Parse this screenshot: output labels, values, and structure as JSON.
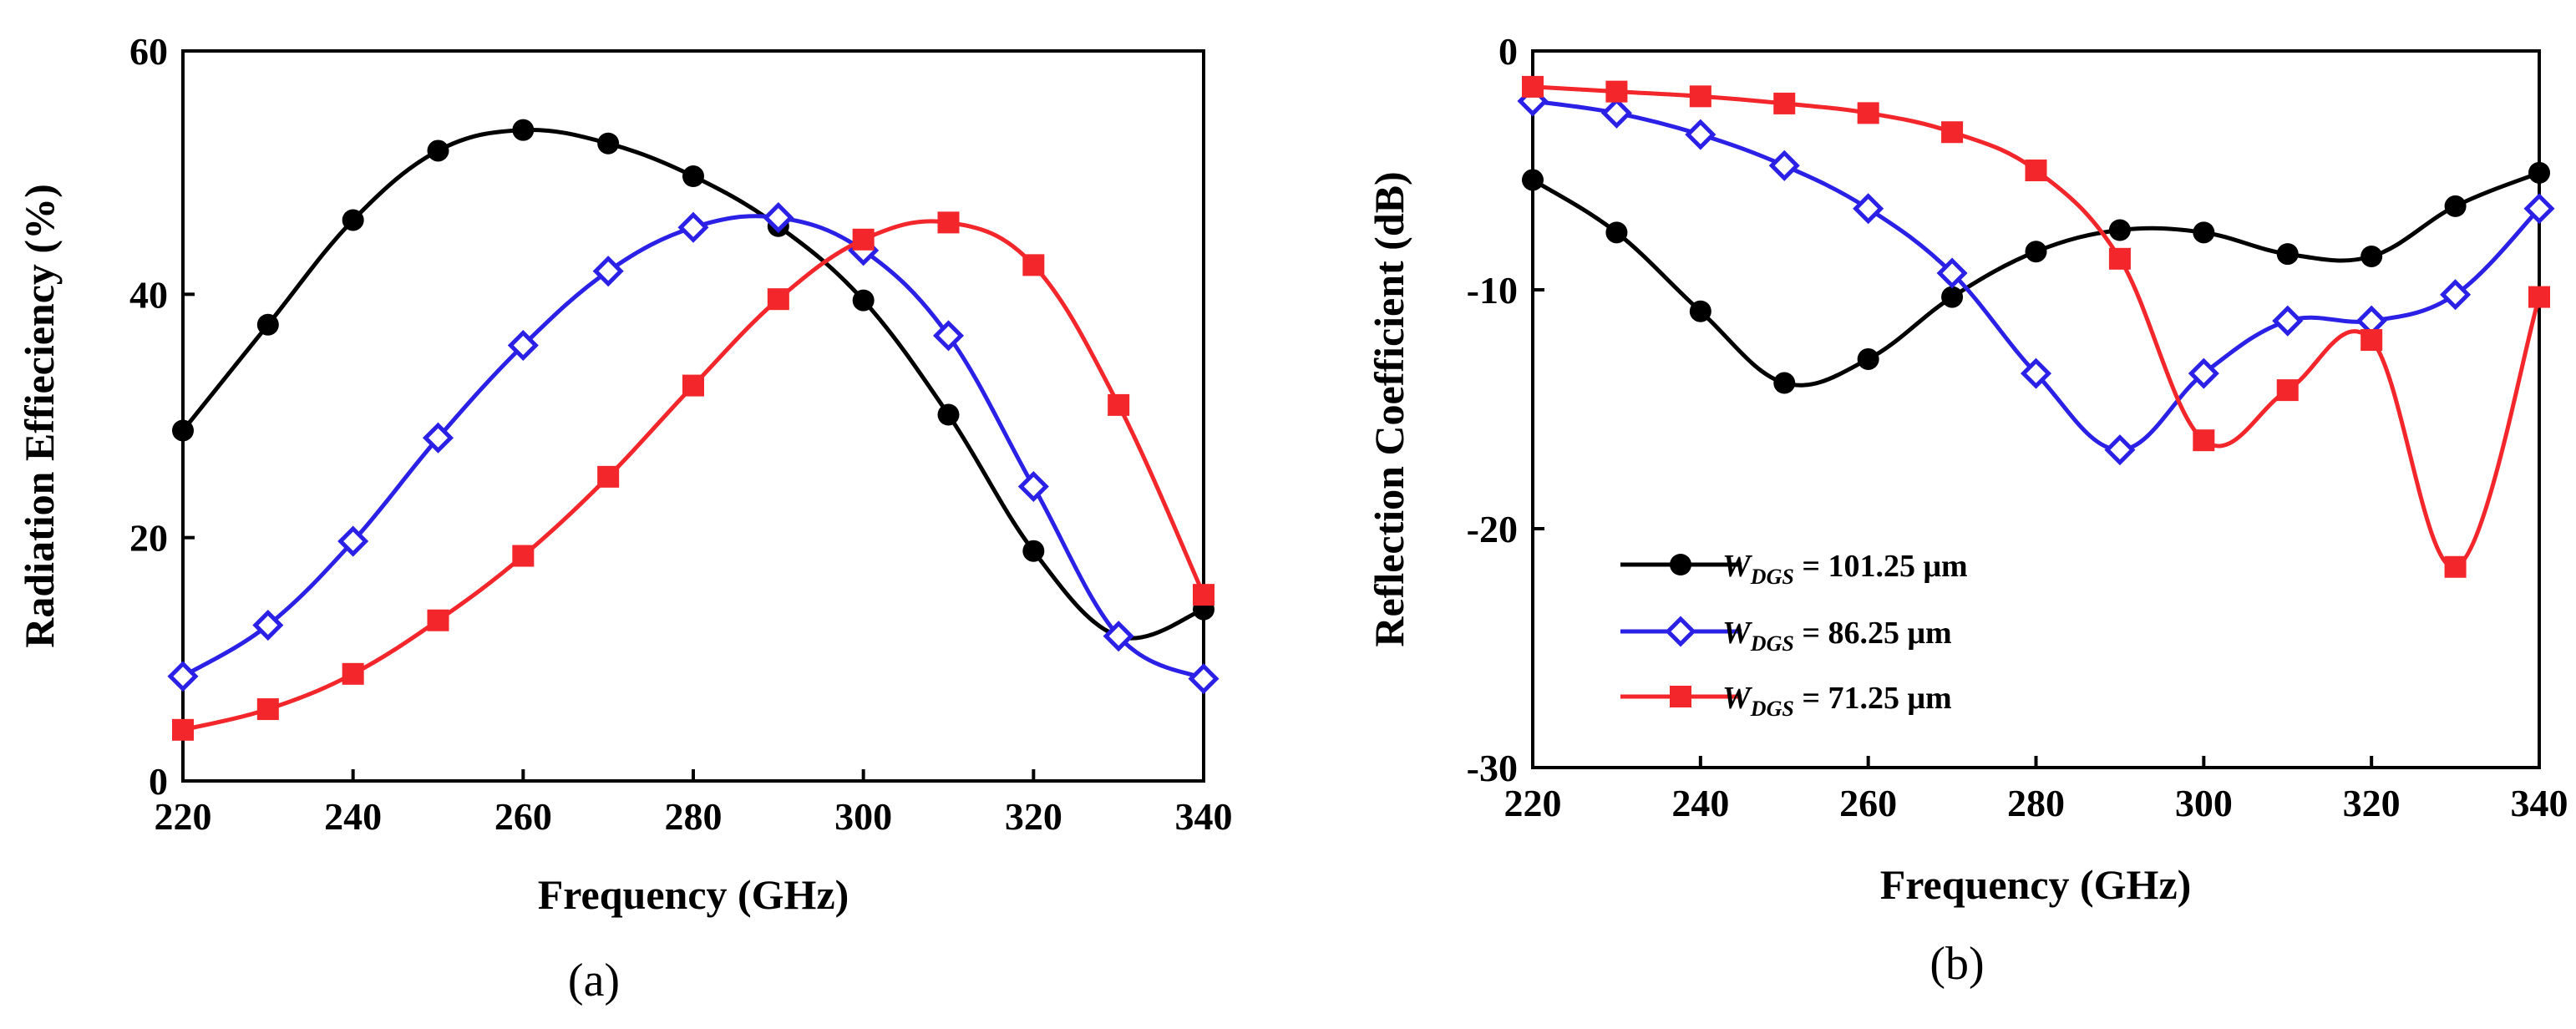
{
  "chart_data": [
    {
      "type": "line",
      "panel_label": "(a)",
      "xlabel": "Frequency (GHz)",
      "ylabel": "Radiation Effieciency (%)",
      "xlim": [
        220,
        340
      ],
      "ylim": [
        0,
        60
      ],
      "x_ticks": [
        "220",
        "240",
        "260",
        "280",
        "300",
        "320",
        "340"
      ],
      "y_ticks": [
        "0",
        "20",
        "40",
        "60"
      ],
      "grid": false,
      "x": [
        220,
        230,
        240,
        250,
        260,
        270,
        280,
        290,
        300,
        310,
        320,
        330,
        340
      ],
      "series": [
        {
          "key": "w101",
          "color": "#000000",
          "marker": "circle",
          "values": [
            28.8,
            37.5,
            46.1,
            51.8,
            53.5,
            52.4,
            49.7,
            45.6,
            39.5,
            30.1,
            18.9,
            11.9,
            14.1
          ]
        },
        {
          "key": "w86",
          "color": "#2b20e6",
          "marker": "diamond-open",
          "values": [
            8.6,
            12.8,
            19.7,
            28.2,
            35.8,
            41.9,
            45.5,
            46.3,
            43.6,
            36.6,
            24.2,
            11.9,
            8.4
          ]
        },
        {
          "key": "w71",
          "color": "#f2262b",
          "marker": "square",
          "values": [
            4.2,
            5.9,
            8.8,
            13.2,
            18.5,
            25.0,
            32.5,
            39.6,
            44.5,
            45.9,
            42.4,
            30.9,
            15.3
          ]
        }
      ]
    },
    {
      "type": "line",
      "panel_label": "(b)",
      "xlabel": "Frequency (GHz)",
      "ylabel": "Reflection Coefficient (dB)",
      "xlim": [
        220,
        340
      ],
      "ylim": [
        -30,
        0
      ],
      "x_ticks": [
        "220",
        "240",
        "260",
        "280",
        "300",
        "320",
        "340"
      ],
      "y_ticks": [
        "0",
        "-10",
        "-20",
        "-30"
      ],
      "grid": false,
      "legend_position": "lower-left",
      "x": [
        220,
        230,
        240,
        250,
        260,
        270,
        280,
        290,
        300,
        310,
        320,
        330,
        340
      ],
      "series": [
        {
          "key": "w101",
          "color": "#000000",
          "marker": "circle",
          "legend_symbol": "W",
          "legend_sub": "DGS",
          "legend_value": " = 101.25 μm",
          "values": [
            -5.4,
            -7.6,
            -10.9,
            -13.9,
            -12.9,
            -10.3,
            -8.4,
            -7.5,
            -7.6,
            -8.5,
            -8.6,
            -6.5,
            -5.1
          ]
        },
        {
          "key": "w86",
          "color": "#2b20e6",
          "marker": "diamond-open",
          "legend_symbol": "W",
          "legend_sub": "DGS",
          "legend_value": " = 86.25 μm",
          "values": [
            -2.1,
            -2.6,
            -3.5,
            -4.8,
            -6.6,
            -9.3,
            -13.5,
            -16.7,
            -13.5,
            -11.3,
            -11.3,
            -10.2,
            -6.6
          ]
        },
        {
          "key": "w71",
          "color": "#f2262b",
          "marker": "square",
          "legend_symbol": "W",
          "legend_sub": "DGS",
          "legend_value": " = 71.25 μm",
          "values": [
            -1.5,
            -1.7,
            -1.9,
            -2.2,
            -2.6,
            -3.4,
            -5.0,
            -8.7,
            -16.3,
            -14.2,
            -12.1,
            -21.6,
            -10.3
          ]
        }
      ]
    }
  ]
}
